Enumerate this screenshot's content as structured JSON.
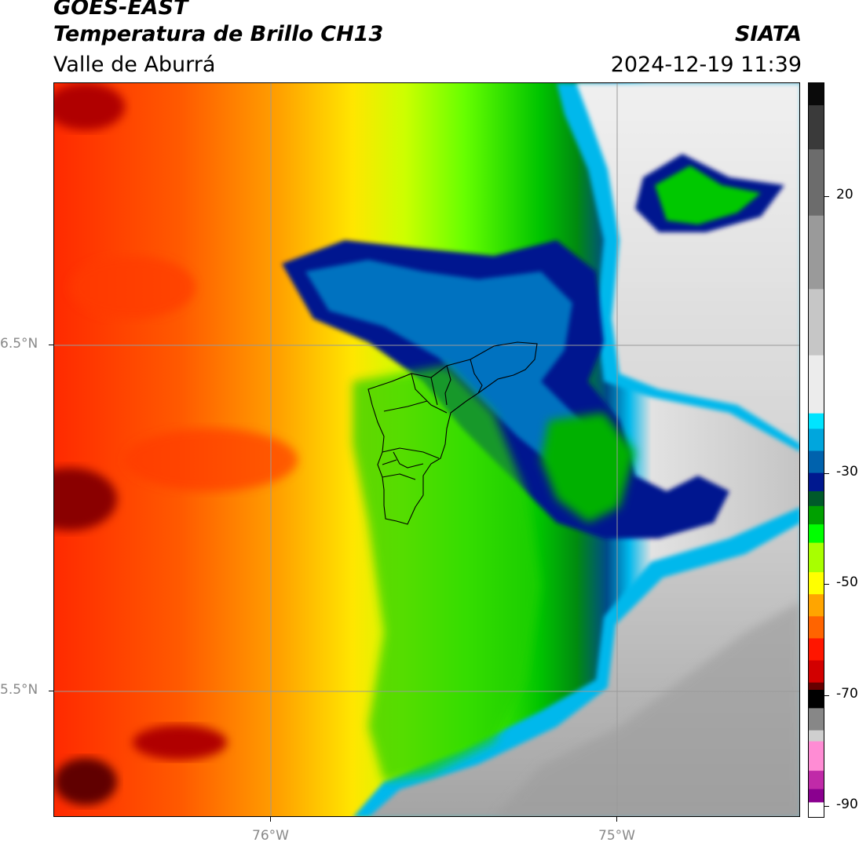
{
  "header": {
    "satellite": "GOES-EAST",
    "product": "Temperatura de Brillo CH13",
    "organization": "SIATA",
    "region": "Valle de Aburrá",
    "datetime": "2024-12-19 11:39"
  },
  "map": {
    "lat_labels": [
      "6.5°N",
      "5.5°N"
    ],
    "lon_labels": [
      "76°W",
      "75°W"
    ],
    "gridline_color": "#9a9a9a",
    "boundary_color": "#000000"
  },
  "colorbar": {
    "tick_labels": [
      "20",
      "-30",
      "-50",
      "-70",
      "-90"
    ],
    "range": [
      -90,
      40
    ],
    "colors_top_to_bottom": [
      "#0a0a0a",
      "#3a3a3a",
      "#6c6c6c",
      "#9a9a9a",
      "#c6c6c6",
      "#ececec",
      "#00e4ff",
      "#00a6dd",
      "#0062ad",
      "#00188f",
      "#005a2a",
      "#00a000",
      "#00ff00",
      "#a8ff00",
      "#ffff00",
      "#ffa500",
      "#ff6400",
      "#ff1600",
      "#d20000",
      "#660000",
      "#000000",
      "#878787",
      "#cfcfcf",
      "#ff8cd4",
      "#c02aa8",
      "#8a008f",
      "#ffffff"
    ]
  }
}
